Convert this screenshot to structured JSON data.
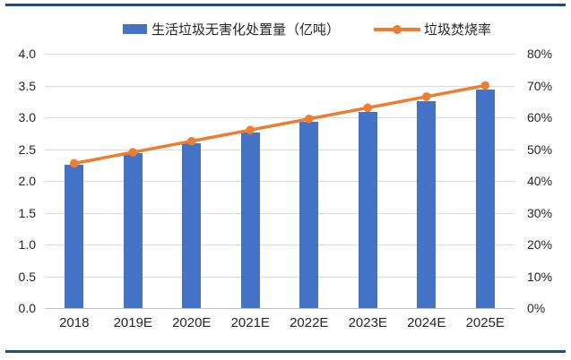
{
  "legend": {
    "bar_label": "生活垃圾无害化处置量（亿吨）",
    "line_label": "垃圾焚烧率"
  },
  "colors": {
    "bar": "#4472C4",
    "line": "#ED7D31",
    "border": "#1F4E79",
    "grid": "#D9D9D9",
    "axis_text": "#262626"
  },
  "chart_data": {
    "type": "combo-bar-line",
    "categories": [
      "2018",
      "2019E",
      "2020E",
      "2021E",
      "2022E",
      "2023E",
      "2024E",
      "2025E"
    ],
    "series": [
      {
        "name": "生活垃圾无害化处置量（亿吨）",
        "type": "bar",
        "axis": "left",
        "color": "#4472C4",
        "values": [
          2.26,
          2.43,
          2.59,
          2.76,
          2.93,
          3.09,
          3.26,
          3.43
        ]
      },
      {
        "name": "垃圾焚烧率",
        "type": "line",
        "axis": "right",
        "color": "#ED7D31",
        "unit": "%",
        "values": [
          45.5,
          49.0,
          52.5,
          56.0,
          59.5,
          63.0,
          66.5,
          70.0
        ]
      }
    ],
    "left_axis": {
      "min": 0.0,
      "max": 4.0,
      "step": 0.5,
      "tick_labels": [
        "4.0",
        "3.5",
        "3.0",
        "2.5",
        "2.0",
        "1.5",
        "1.0",
        "0.5",
        "0.0"
      ]
    },
    "right_axis": {
      "min": 0,
      "max": 80,
      "step": 10,
      "tick_labels": [
        "80%",
        "70%",
        "60%",
        "50%",
        "40%",
        "30%",
        "20%",
        "10%",
        "0%"
      ]
    },
    "grid": true,
    "legend_position": "top",
    "title": ""
  }
}
